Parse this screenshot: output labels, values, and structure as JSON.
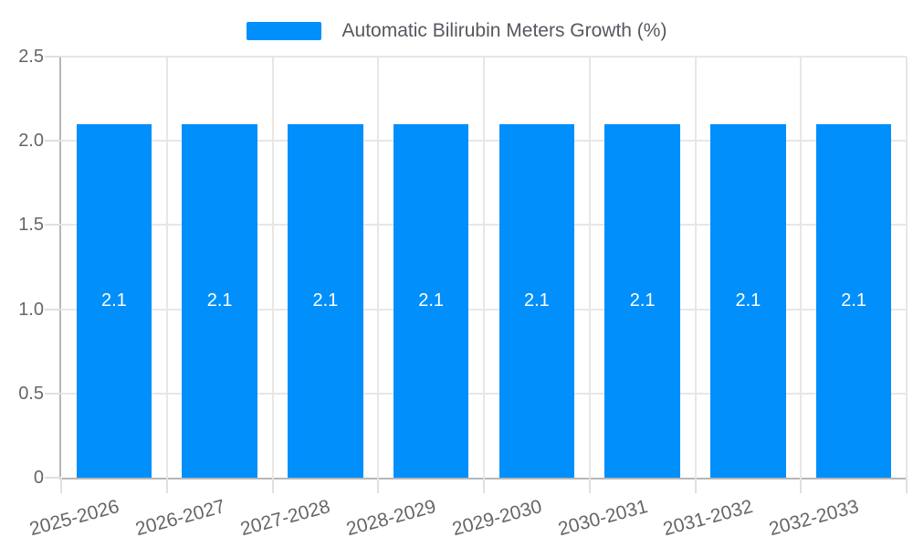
{
  "legend": {
    "label": "Automatic Bilirubin Meters Growth (%)"
  },
  "chart_data": {
    "type": "bar",
    "title": "Automatic Bilirubin Meters Growth (%)",
    "categories": [
      "2025-2026",
      "2026-2027",
      "2027-2028",
      "2028-2029",
      "2029-2030",
      "2030-2031",
      "2031-2032",
      "2032-2033"
    ],
    "series": [
      {
        "name": "Automatic Bilirubin Meters Growth (%)",
        "values": [
          2.1,
          2.1,
          2.1,
          2.1,
          2.1,
          2.1,
          2.1,
          2.1
        ]
      }
    ],
    "bar_value_labels": [
      "2.1",
      "2.1",
      "2.1",
      "2.1",
      "2.1",
      "2.1",
      "2.1",
      "2.1"
    ],
    "xlabel": "",
    "ylabel": "",
    "ylim": [
      0,
      2.5
    ],
    "yticks": [
      0,
      0.5,
      1,
      1.5,
      2,
      2.5
    ],
    "ytick_labels": [
      "0",
      "0.5",
      "1.0",
      "1.5",
      "2.0",
      "2.5"
    ],
    "grid": true,
    "legend_position": "top",
    "xlabel_rotation_deg": -15,
    "bar_label_position": "middle",
    "colors": {
      "bar": "#008FFB",
      "bar_label_text": "#FFFFFF",
      "grid_line": "#E7E7E7",
      "axis_line": "#B6B6B6",
      "tick_line": "#E0E0E0",
      "axis_text": "#666666",
      "legend_text": "#55595F",
      "background": "#FFFFFF"
    }
  }
}
